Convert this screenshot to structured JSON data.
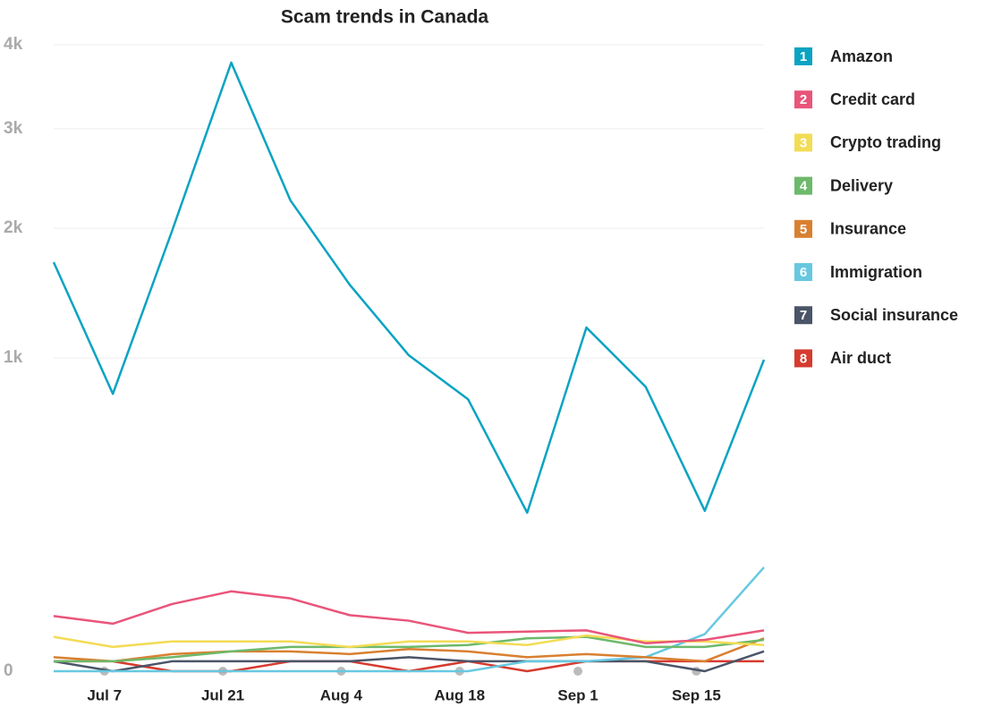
{
  "chart_data": {
    "type": "line",
    "title": "Scam trends in Canada",
    "x": [
      1,
      8,
      15,
      22,
      29,
      36,
      43,
      50,
      57,
      64,
      71,
      78,
      85
    ],
    "xlim": [
      1,
      85
    ],
    "xticks": [
      {
        "value": 7,
        "label": "Jul 7"
      },
      {
        "value": 21,
        "label": "Jul 21"
      },
      {
        "value": 35,
        "label": "Aug 4"
      },
      {
        "value": 49,
        "label": "Aug 18"
      },
      {
        "value": 63,
        "label": "Sep 1"
      },
      {
        "value": 77,
        "label": "Sep 15"
      }
    ],
    "ylim": [
      0,
      4000
    ],
    "yscale": "sqrt",
    "yticks": [
      0,
      {
        "value": 1000,
        "label": "1k"
      },
      {
        "value": 2000,
        "label": "2k"
      },
      {
        "value": 3000,
        "label": "3k"
      },
      {
        "value": 4000,
        "label": "4k"
      }
    ],
    "grid": true,
    "legend": "right",
    "series": [
      {
        "name": "Amazon",
        "marker": "1",
        "color": "#0aa3c2",
        "values": [
          1705,
          784,
          1976,
          3775,
          2259,
          1523,
          1017,
          754,
          256,
          1204,
          825,
          262,
          989
        ]
      },
      {
        "name": "Credit card",
        "marker": "2",
        "color": "#e9557a",
        "values": [
          31,
          23,
          46,
          65,
          54,
          32,
          26,
          15,
          16,
          17,
          8,
          10,
          17
        ]
      },
      {
        "name": "Crypto trading",
        "marker": "3",
        "color": "#f3dc55",
        "values": [
          12,
          6,
          9,
          9,
          9,
          6,
          9,
          9,
          7,
          13,
          9,
          9,
          7
        ]
      },
      {
        "name": "Delivery",
        "marker": "4",
        "color": "#6db96b",
        "values": [
          1,
          1,
          2,
          4,
          6,
          6,
          6,
          7,
          11,
          12,
          6,
          6,
          10
        ]
      },
      {
        "name": "Insurance",
        "marker": "5",
        "color": "#d98030",
        "values": [
          2,
          1,
          3,
          4,
          4,
          3,
          5,
          4,
          2,
          3,
          2,
          1,
          11
        ]
      },
      {
        "name": "Immigration",
        "marker": "6",
        "color": "#67c8e0",
        "values": [
          0,
          0,
          0,
          0,
          0,
          0,
          0,
          0,
          1,
          1,
          2,
          14,
          110
        ]
      },
      {
        "name": "Social insurance",
        "marker": "7",
        "color": "#4a5568",
        "values": [
          1,
          0,
          1,
          1,
          1,
          1,
          2,
          1,
          1,
          1,
          1,
          0,
          4
        ]
      },
      {
        "name": "Air duct",
        "marker": "8",
        "color": "#d63b2f",
        "values": [
          1,
          1,
          0,
          0,
          1,
          1,
          0,
          1,
          0,
          1,
          1,
          1,
          1
        ]
      }
    ]
  }
}
